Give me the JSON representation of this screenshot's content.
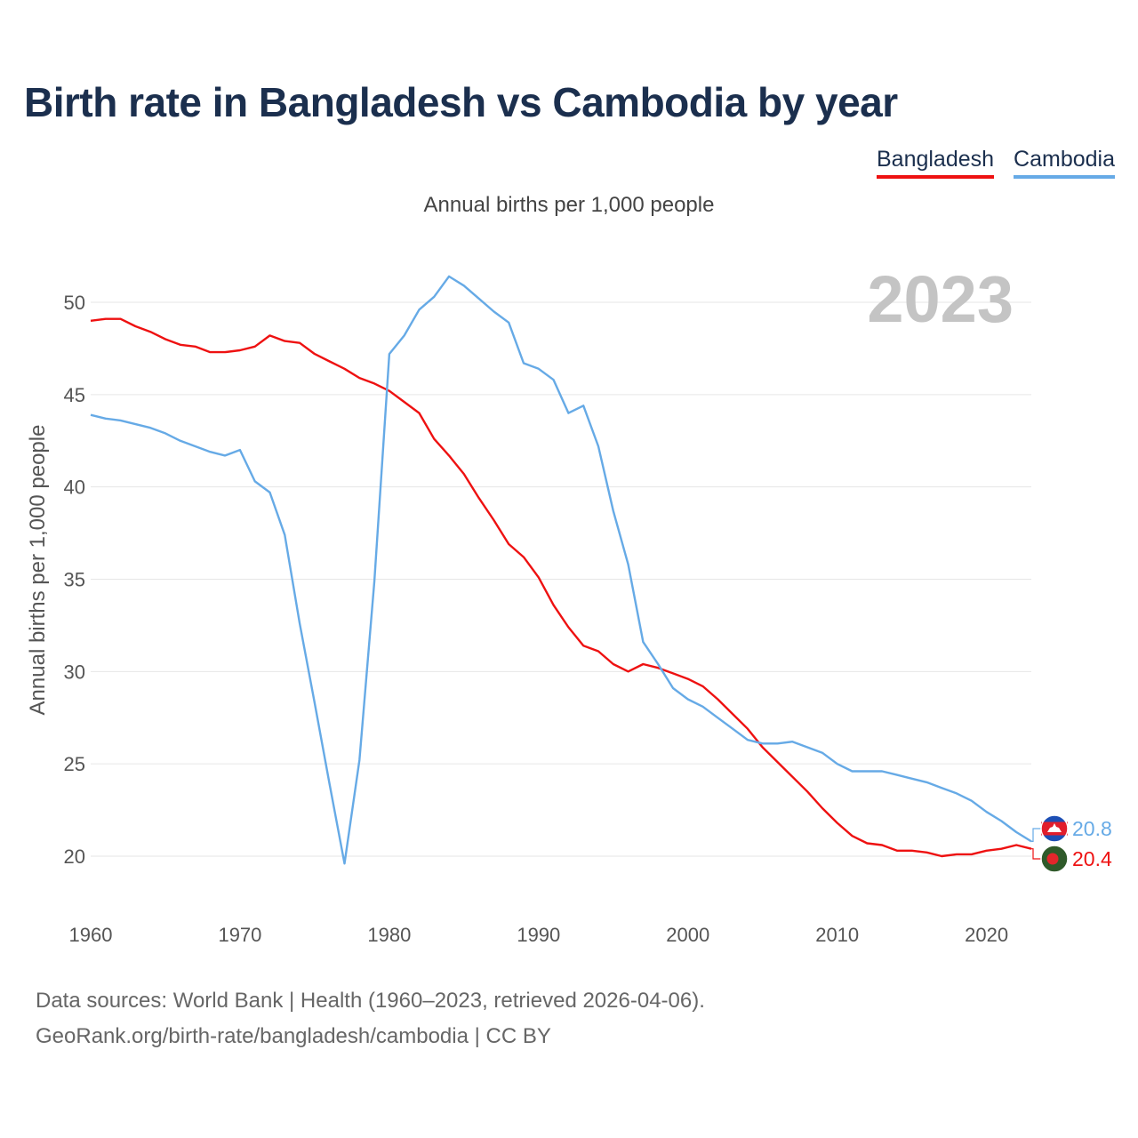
{
  "title": "Birth rate in Bangladesh vs Cambodia by year",
  "subtitle": "Annual births per 1,000 people",
  "legend": [
    {
      "name": "Bangladesh",
      "color": "#ee1111"
    },
    {
      "name": "Cambodia",
      "color": "#66aae6"
    }
  ],
  "footer": {
    "line1": "Data sources: World Bank | Health (1960–2023, retrieved 2026-04-06).",
    "line2": "GeoRank.org/birth-rate/bangladesh/cambodia | CC BY"
  },
  "chart_data": {
    "type": "line",
    "title": "Birth rate in Bangladesh vs Cambodia by year",
    "subtitle": "Annual births per 1,000 people",
    "xlabel": "",
    "ylabel": "Annual births per 1,000 people",
    "year_label": "2023",
    "xlim": [
      1960,
      2023
    ],
    "ylim": [
      18.5,
      51.5
    ],
    "xticks": [
      1960,
      1970,
      1980,
      1990,
      2000,
      2010,
      2020
    ],
    "yticks": [
      20,
      25,
      30,
      35,
      40,
      45,
      50
    ],
    "grid": true,
    "legend_position": "top-right",
    "x": [
      1960,
      1961,
      1962,
      1963,
      1964,
      1965,
      1966,
      1967,
      1968,
      1969,
      1970,
      1971,
      1972,
      1973,
      1974,
      1975,
      1976,
      1977,
      1978,
      1979,
      1980,
      1981,
      1982,
      1983,
      1984,
      1985,
      1986,
      1987,
      1988,
      1989,
      1990,
      1991,
      1992,
      1993,
      1994,
      1995,
      1996,
      1997,
      1998,
      1999,
      2000,
      2001,
      2002,
      2003,
      2004,
      2005,
      2006,
      2007,
      2008,
      2009,
      2010,
      2011,
      2012,
      2013,
      2014,
      2015,
      2016,
      2017,
      2018,
      2019,
      2020,
      2021,
      2022,
      2023
    ],
    "series": [
      {
        "name": "Bangladesh",
        "color": "#ee1111",
        "last_value_label": "20.4",
        "values": [
          49.0,
          49.1,
          49.1,
          48.7,
          48.4,
          48.0,
          47.7,
          47.6,
          47.3,
          47.3,
          47.4,
          47.6,
          48.2,
          47.9,
          47.8,
          47.2,
          46.8,
          46.4,
          45.9,
          45.6,
          45.2,
          44.6,
          44.0,
          42.6,
          41.7,
          40.7,
          39.4,
          38.2,
          36.9,
          36.2,
          35.1,
          33.6,
          32.4,
          31.4,
          31.1,
          30.4,
          30.0,
          30.4,
          30.2,
          29.9,
          29.6,
          29.2,
          28.5,
          27.7,
          26.9,
          25.9,
          25.1,
          24.3,
          23.5,
          22.6,
          21.8,
          21.1,
          20.7,
          20.6,
          20.3,
          20.3,
          20.2,
          20.0,
          20.1,
          20.1,
          20.3,
          20.4,
          20.6,
          20.4
        ]
      },
      {
        "name": "Cambodia",
        "color": "#66aae6",
        "last_value_label": "20.8",
        "values": [
          43.9,
          43.7,
          43.6,
          43.4,
          43.2,
          42.9,
          42.5,
          42.2,
          41.9,
          41.7,
          42.0,
          40.3,
          39.7,
          37.4,
          32.6,
          28.3,
          23.9,
          19.6,
          25.2,
          34.9,
          47.2,
          48.2,
          49.6,
          50.3,
          51.4,
          50.9,
          50.2,
          49.5,
          48.9,
          46.7,
          46.4,
          45.8,
          44.0,
          44.4,
          42.2,
          38.7,
          35.8,
          31.6,
          30.4,
          29.1,
          28.5,
          28.1,
          27.5,
          26.9,
          26.3,
          26.1,
          26.1,
          26.2,
          25.9,
          25.6,
          25.0,
          24.6,
          24.6,
          24.6,
          24.4,
          24.2,
          24.0,
          23.7,
          23.4,
          23.0,
          22.4,
          21.9,
          21.3,
          20.8
        ]
      }
    ]
  }
}
